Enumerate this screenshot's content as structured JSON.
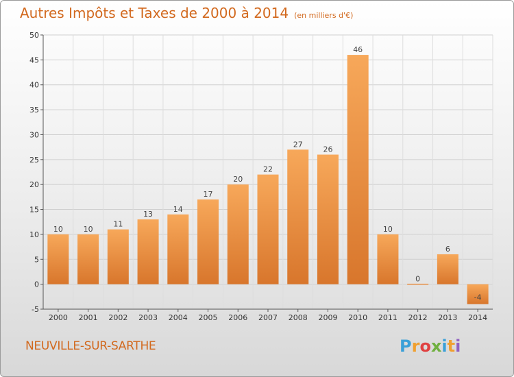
{
  "title": "Autres Impôts et Taxes de 2000 à 2014",
  "subtitle": "(en milliers d'€)",
  "commune": "NEUVILLE-SUR-SARTHE",
  "brand": {
    "letters": [
      "P",
      "r",
      "o",
      "x",
      "i",
      "t",
      "i"
    ],
    "colors": [
      "#3aa0d8",
      "#f0a030",
      "#e04040",
      "#70b040",
      "#3aa0d8",
      "#f0a030",
      "#9060c0"
    ]
  },
  "colors": {
    "bar_top": "#f7a85a",
    "bar_bottom": "#d8762c",
    "title": "#d2691e"
  },
  "chart_data": {
    "type": "bar",
    "title": "Autres Impôts et Taxes de 2000 à 2014",
    "subtitle": "(en milliers d'€)",
    "xlabel": "",
    "ylabel": "",
    "categories": [
      "2000",
      "2001",
      "2002",
      "2003",
      "2004",
      "2005",
      "2006",
      "2007",
      "2008",
      "2009",
      "2010",
      "2011",
      "2012",
      "2013",
      "2014"
    ],
    "values": [
      10,
      10,
      11,
      13,
      14,
      17,
      20,
      22,
      27,
      26,
      46,
      10,
      0,
      6,
      -4
    ],
    "ylim": [
      -5,
      50
    ],
    "yticks": [
      -5,
      0,
      5,
      10,
      15,
      20,
      25,
      30,
      35,
      40,
      45,
      50
    ],
    "grid": true
  }
}
